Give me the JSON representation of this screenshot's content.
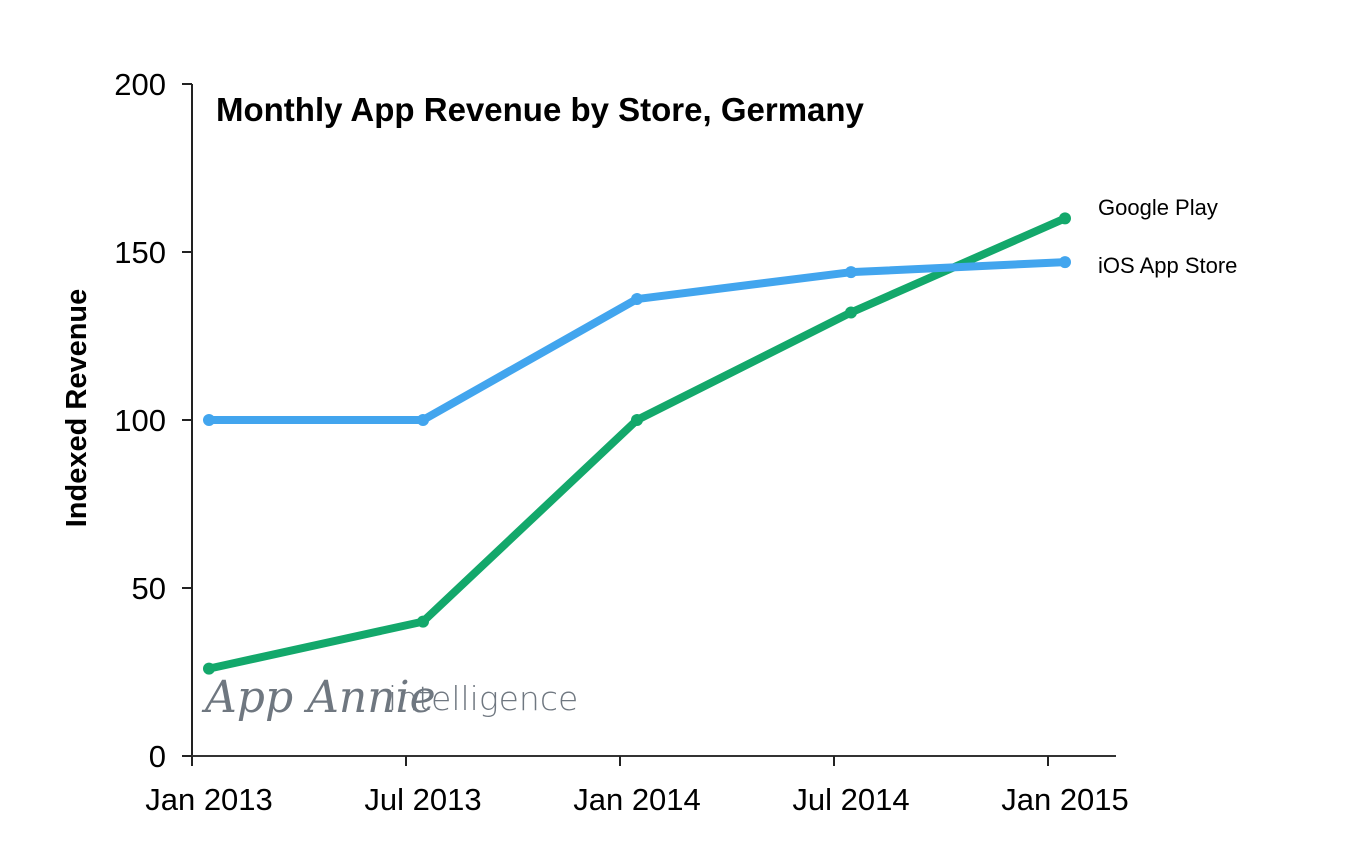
{
  "chart_data": {
    "type": "line",
    "title": "Monthly App Revenue by Store, Germany",
    "xlabel": "",
    "ylabel": "Indexed Revenue",
    "categories": [
      "Jan 2013",
      "Jul 2013",
      "Jan 2014",
      "Jul 2014",
      "Jan 2015"
    ],
    "yticks": [
      0,
      50,
      100,
      150,
      200
    ],
    "ylim": [
      0,
      200
    ],
    "grid": false,
    "legend": "right (labels at line ends)",
    "series": [
      {
        "name": "Google Play",
        "color": "#13a86b",
        "values": [
          26,
          40,
          100,
          132,
          160
        ]
      },
      {
        "name": "iOS App Store",
        "color": "#42a5ee",
        "values": [
          100,
          100,
          136,
          144,
          147
        ]
      }
    ],
    "watermark": {
      "brand": "App Annie",
      "suffix": "intelligence"
    }
  }
}
